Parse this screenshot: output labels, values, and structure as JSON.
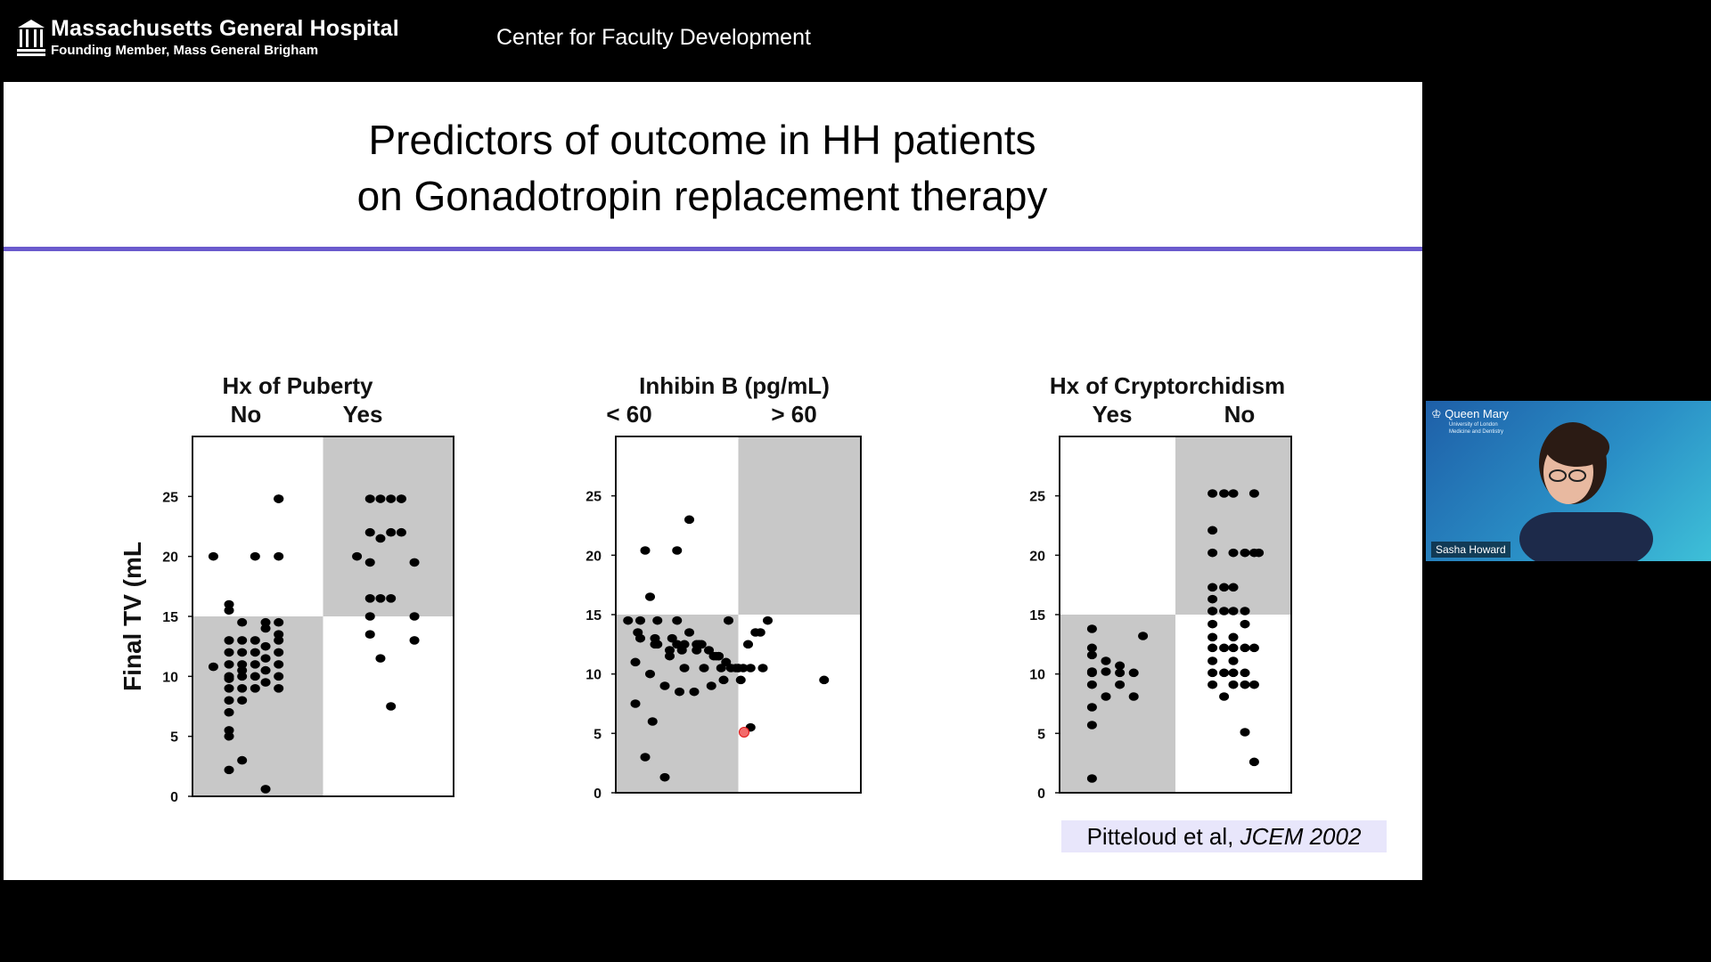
{
  "header": {
    "org_name": "Massachusetts General Hospital",
    "org_subtitle": "Founding Member, Mass General Brigham",
    "center_title": "Center for Faculty Development"
  },
  "slide": {
    "title_line1": "Predictors of outcome in HH patients",
    "title_line2": "on Gonadotropin replacement therapy",
    "citation_authors": "Pitteloud et al, ",
    "citation_journal": "JCEM  2002",
    "divider_color": "#6a5acd"
  },
  "video": {
    "speaker_name": "Sasha Howard",
    "institution": "Queen Mary",
    "institution_sub1": "University of London",
    "institution_sub2": "Medicine and Dentistry"
  },
  "chart_data": [
    {
      "type": "scatter",
      "title": "Hx of Puberty",
      "categories": [
        "No",
        "Yes"
      ],
      "ylabel": "Final TV (mL",
      "ylim": [
        0,
        30
      ],
      "yticks": [
        0,
        5,
        10,
        15,
        20,
        25
      ],
      "quadrant_threshold": 15,
      "shaded": [
        "lower-left",
        "upper-right"
      ],
      "x": [
        0.08,
        0.08,
        0.14,
        0.14,
        0.14,
        0.14,
        0.14,
        0.14,
        0.14,
        0.14,
        0.14,
        0.14,
        0.14,
        0.14,
        0.14,
        0.19,
        0.19,
        0.19,
        0.19,
        0.19,
        0.19,
        0.19,
        0.19,
        0.19,
        0.24,
        0.24,
        0.24,
        0.24,
        0.24,
        0.24,
        0.28,
        0.28,
        0.28,
        0.28,
        0.28,
        0.28,
        0.28,
        0.33,
        0.33,
        0.33,
        0.33,
        0.33,
        0.33,
        0.33,
        0.33,
        0.33,
        0.33,
        0.33,
        0.63,
        0.68,
        0.68,
        0.68,
        0.68,
        0.68,
        0.68,
        0.72,
        0.72,
        0.72,
        0.72,
        0.76,
        0.76,
        0.76,
        0.76,
        0.8,
        0.8,
        0.8,
        0.85,
        0.85,
        0.85
      ],
      "y": [
        20,
        10.8,
        16,
        13,
        12,
        11,
        10,
        9,
        8,
        7,
        5.5,
        5,
        15.5,
        2.2,
        9.8,
        14.5,
        13,
        12,
        11,
        10,
        9,
        8,
        10.5,
        3,
        13,
        12,
        11,
        10,
        9,
        20,
        12.5,
        11.5,
        10.5,
        9.5,
        14,
        14.5,
        0.6,
        13,
        12,
        11,
        10,
        9,
        20,
        24.8,
        14.5,
        24.8,
        13.5,
        24.8,
        20,
        24.8,
        22,
        19.5,
        16.5,
        15,
        13.5,
        24.8,
        21.5,
        16.5,
        11.5,
        24.8,
        7.5,
        22,
        16.5,
        24.8,
        24.8,
        22,
        19.5,
        13,
        15
      ]
    },
    {
      "type": "scatter",
      "title": "Inhibin B (pg/mL)",
      "categories": [
        "< 60",
        "> 60"
      ],
      "ylim": [
        0,
        30
      ],
      "yticks": [
        0,
        5,
        10,
        15,
        20,
        25
      ],
      "quadrant_threshold": 15,
      "shaded": [
        "lower-left",
        "upper-right"
      ],
      "x": [
        0.12,
        0.25,
        0.08,
        0.12,
        0.15,
        0.2,
        0.25,
        0.3,
        0.35,
        0.4,
        0.45,
        0.5,
        0.55,
        0.6,
        0.85,
        0.17,
        0.23,
        0.27,
        0.33,
        0.38,
        0.42,
        0.47,
        0.52,
        0.08,
        0.14,
        0.2,
        0.26,
        0.32,
        0.39,
        0.44,
        0.55,
        0.05,
        0.1,
        0.16,
        0.22,
        0.28,
        0.34,
        0.41,
        0.49,
        0.54,
        0.1,
        0.16,
        0.22,
        0.28,
        0.36,
        0.43,
        0.5,
        0.57,
        0.09,
        0.17,
        0.25,
        0.33,
        0.42,
        0.51,
        0.59,
        0.14,
        0.3,
        0.46,
        0.62
      ],
      "y": [
        20.4,
        20.4,
        7.5,
        3,
        6,
        1.3,
        14.5,
        13.5,
        12.5,
        11.5,
        11,
        10.5,
        10.5,
        10.5,
        9.5,
        14.5,
        13,
        12,
        12,
        12,
        11.5,
        10.5,
        10.5,
        11,
        10,
        9,
        8.5,
        8.5,
        9,
        9.5,
        5.5,
        14.5,
        13,
        12.5,
        11.5,
        12.5,
        12.5,
        11.5,
        10.5,
        12.5,
        14.5,
        13,
        12,
        10.5,
        10.5,
        10.5,
        10.5,
        13.5,
        13.5,
        12.5,
        12.5,
        12.5,
        11.5,
        9.5,
        13.5,
        16.5,
        23,
        14.5,
        14.5
      ]
    },
    {
      "type": "scatter",
      "title": "Hx of Cryptorchidism",
      "categories": [
        "Yes",
        "No"
      ],
      "ylim": [
        0,
        30
      ],
      "yticks": [
        0,
        5,
        10,
        15,
        20,
        25
      ],
      "quadrant_threshold": 15,
      "shaded": [
        "lower-left",
        "upper-right"
      ],
      "x": [
        0.14,
        0.14,
        0.14,
        0.14,
        0.14,
        0.14,
        0.14,
        0.14,
        0.14,
        0.2,
        0.2,
        0.2,
        0.26,
        0.26,
        0.26,
        0.32,
        0.32,
        0.36,
        0.66,
        0.66,
        0.66,
        0.66,
        0.66,
        0.66,
        0.66,
        0.66,
        0.66,
        0.66,
        0.66,
        0.66,
        0.66,
        0.71,
        0.71,
        0.71,
        0.71,
        0.71,
        0.71,
        0.75,
        0.75,
        0.75,
        0.75,
        0.75,
        0.75,
        0.75,
        0.75,
        0.75,
        0.8,
        0.8,
        0.8,
        0.8,
        0.8,
        0.8,
        0.8,
        0.84,
        0.84,
        0.84,
        0.84,
        0.84,
        0.86
      ],
      "y": [
        13.8,
        12.2,
        11.6,
        10.2,
        9.1,
        7.2,
        5.7,
        1.2,
        10.1,
        11.1,
        10.2,
        8.1,
        10.7,
        10.1,
        9.1,
        10.1,
        8.1,
        13.2,
        25.2,
        22.1,
        20.2,
        16.3,
        15.3,
        14.2,
        13.1,
        12.2,
        11.1,
        10.1,
        9.1,
        17.3,
        15.3,
        25.2,
        17.3,
        15.3,
        12.2,
        10.1,
        8.1,
        25.2,
        20.2,
        17.3,
        15.3,
        13.1,
        12.2,
        11.1,
        10.1,
        9.1,
        20.2,
        15.3,
        14.2,
        12.2,
        10.1,
        9.1,
        5.1,
        20.2,
        12.2,
        9.1,
        2.6,
        25.2,
        20.2
      ]
    }
  ]
}
